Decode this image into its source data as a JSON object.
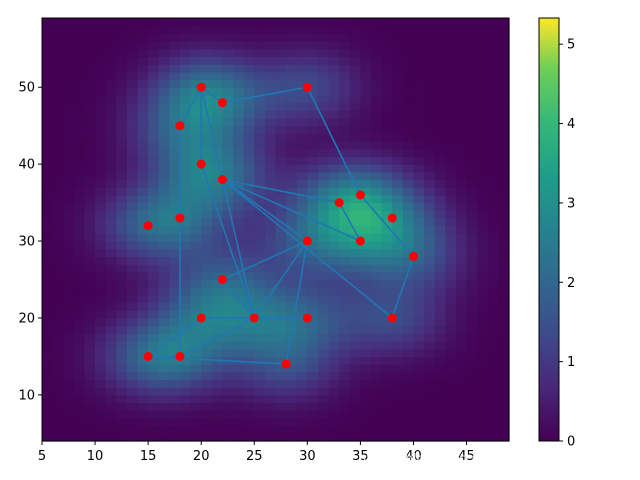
{
  "chart_data": {
    "type": "heatmap",
    "title": "",
    "xlabel": "",
    "ylabel": "",
    "xlim": [
      5,
      49
    ],
    "ylim": [
      4,
      59
    ],
    "xticks": [
      5,
      10,
      15,
      20,
      25,
      30,
      35,
      40,
      45
    ],
    "yticks": [
      10,
      20,
      30,
      40,
      50
    ],
    "colormap": "viridis",
    "colorbar": {
      "min": 0,
      "max": 5.33,
      "ticks": [
        0,
        1,
        2,
        3,
        4,
        5
      ]
    },
    "points": {
      "color": "#ff0000",
      "x": [
        20,
        22,
        30,
        18,
        20,
        22,
        15,
        18,
        33,
        35,
        38,
        35,
        30,
        40,
        22,
        38,
        20,
        25,
        30,
        15,
        18,
        28
      ],
      "y": [
        50,
        48,
        50,
        45,
        40,
        38,
        32,
        33,
        35,
        36,
        33,
        30,
        30,
        28,
        25,
        20,
        20,
        20,
        20,
        15,
        15,
        14
      ]
    },
    "path": {
      "color": "#1f77b4",
      "order": [
        0,
        1,
        2,
        9,
        13,
        15,
        5,
        11,
        8,
        5,
        17,
        4,
        0,
        5,
        12,
        17,
        14,
        12,
        21,
        19,
        20,
        17,
        18,
        16,
        19,
        20,
        7,
        3,
        0
      ]
    }
  },
  "watermark": "https://blog.csdn.net/weixin_40766438"
}
